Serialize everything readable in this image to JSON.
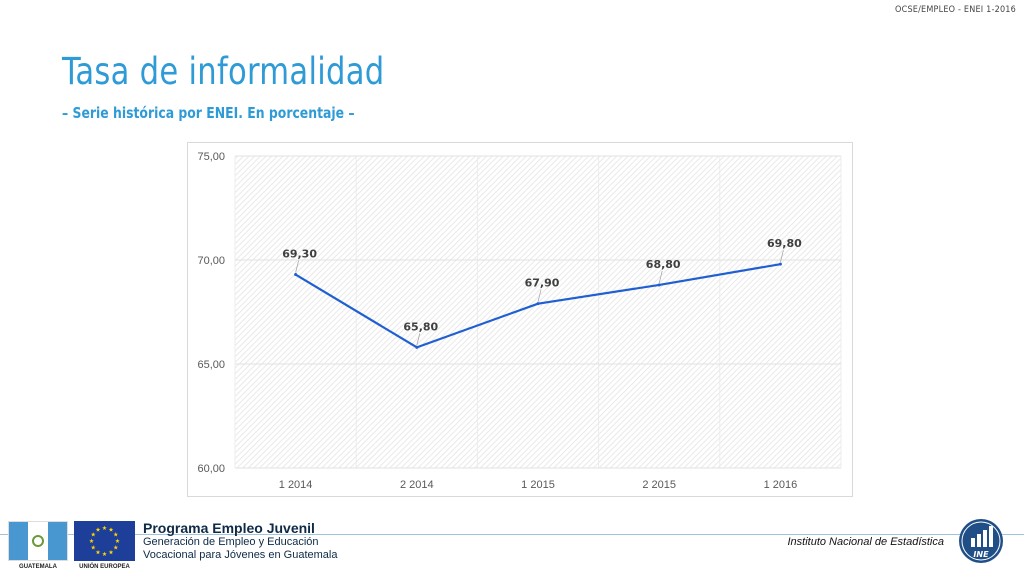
{
  "header": {
    "reference": "OCSE/EMPLEO -  ENEI 1-2016",
    "title": "Tasa de informalidad",
    "subtitle": "– Serie histórica por ENEI. En porcentaje –"
  },
  "chart_data": {
    "type": "line",
    "title": "",
    "xlabel": "",
    "ylabel": "",
    "categories": [
      "1 2014",
      "2 2014",
      "1 2015",
      "2 2015",
      "1 2016"
    ],
    "series": [
      {
        "values": [
          69.3,
          65.8,
          67.9,
          68.8,
          69.8
        ],
        "labels": [
          "69,30",
          "65,80",
          "67,90",
          "68,80",
          "69,80"
        ]
      }
    ],
    "ylim": [
      60,
      75
    ],
    "yticks": [
      60,
      65,
      70,
      75
    ],
    "ytick_labels": [
      "60,00",
      "65,00",
      "70,00",
      "75,00"
    ],
    "grid": true,
    "line_color": "#1f5fd1"
  },
  "footer": {
    "flag_label": "GUATEMALA",
    "eu_label": "UNIÓN EUROPEA",
    "program_title": "Programa Empleo Juvenil",
    "program_line1": "Generación de Empleo y Educación",
    "program_line2": "Vocacional para Jóvenes en Guatemala",
    "institute": "Instituto Nacional de Estadística",
    "ine_logo_text": "INE"
  }
}
